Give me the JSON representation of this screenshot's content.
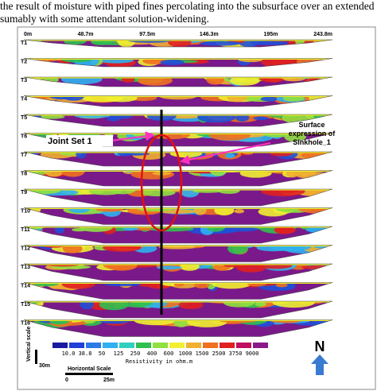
{
  "caption_lines": [
    "the result of moisture with piped fines percolating into the subsurface over an extended",
    "sumably with some attendant solution-widening."
  ],
  "figure": {
    "distance_labels": [
      "0m",
      "48.7m",
      "97.5m",
      "146.3m",
      "195m",
      "243.8m"
    ],
    "profiles": [
      "T1",
      "T2",
      "T3",
      "T4",
      "T5",
      "T6",
      "T7",
      "T8",
      "T9",
      "T10",
      "T11",
      "T12",
      "T13",
      "T14",
      "T15",
      "T16"
    ],
    "annotations": {
      "joint_set": "Joint Set 1",
      "sinkhole": [
        "Surface",
        "expression of",
        "Sinkhole_1"
      ]
    },
    "legend": {
      "labels": [
        "10.0",
        "38.8",
        "50",
        "125",
        "250",
        "400",
        "600",
        "1000",
        "1500",
        "2500",
        "3750",
        "9000"
      ],
      "colors": [
        "#1a1aa0",
        "#2040d8",
        "#2a7ae8",
        "#30b0f0",
        "#30d0c0",
        "#30c050",
        "#90e040",
        "#f0f030",
        "#f0b030",
        "#f07020",
        "#e02020",
        "#c01060",
        "#8a1a8a"
      ],
      "title": "Resistivity in ohm.m"
    },
    "vertical_scale": {
      "title": "Vertical scale",
      "value": "30m"
    },
    "horizontal_scale": {
      "title": "Horizontal Scale",
      "start": "0",
      "end": "25m"
    },
    "north": "N"
  }
}
